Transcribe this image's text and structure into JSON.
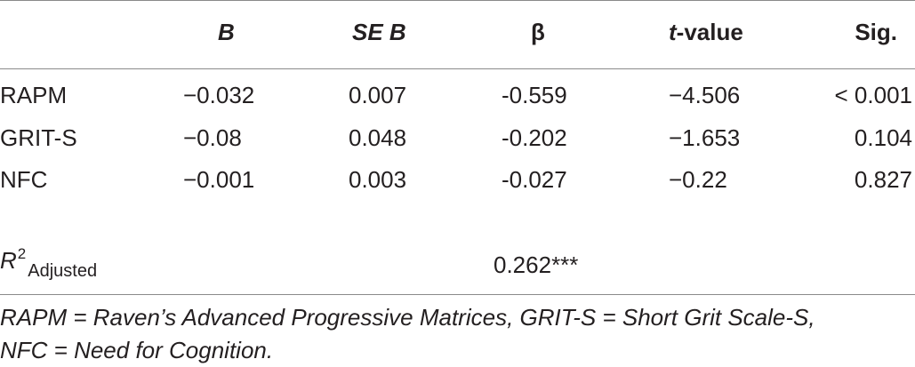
{
  "table": {
    "headers": [
      {
        "id": "b",
        "label": "B"
      },
      {
        "id": "seb",
        "label": "SE B"
      },
      {
        "id": "beta",
        "label": "β"
      },
      {
        "id": "t_prefix",
        "label": "t"
      },
      {
        "id": "t_suffix",
        "label": "-value"
      },
      {
        "id": "sig",
        "label": "Sig."
      }
    ],
    "rows": [
      {
        "label": "RAPM",
        "b": "−0.032",
        "seb": "0.007",
        "beta": "-0.559",
        "t": "−4.506",
        "sig": "< 0.001"
      },
      {
        "label": "GRIT-S",
        "b": "−0.08",
        "seb": "0.048",
        "beta": "-0.202",
        "t": "−1.653",
        "sig": "0.104"
      },
      {
        "label": "NFC",
        "b": "−0.001",
        "seb": "0.003",
        "beta": "-0.027",
        "t": "−0.22",
        "sig": "0.827"
      }
    ],
    "r2": {
      "symbol": "R",
      "exponent": "2",
      "subscript": "Adjusted",
      "value": "0.262***"
    }
  },
  "footnote": {
    "line1": "RAPM = Raven’s Advanced Progressive Matrices, GRIT-S = Short Grit Scale-S,",
    "line2": "NFC = Need for Cognition."
  }
}
